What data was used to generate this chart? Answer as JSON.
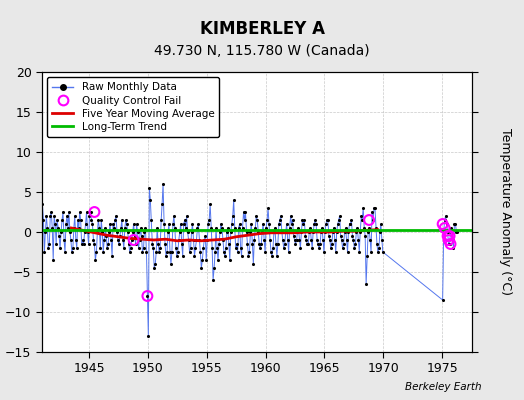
{
  "title": "KIMBERLEY A",
  "subtitle": "49.730 N, 115.780 W (Canada)",
  "ylabel": "Temperature Anomaly (°C)",
  "watermark": "Berkeley Earth",
  "bg_color": "#e8e8e8",
  "plot_bg_color": "#ffffff",
  "ylim": [
    -15,
    20
  ],
  "yticks": [
    -15,
    -10,
    -5,
    0,
    5,
    10,
    15,
    20
  ],
  "xticks": [
    1945,
    1950,
    1955,
    1960,
    1965,
    1970,
    1975
  ],
  "xlim": [
    1941.0,
    1977.5
  ],
  "raw_years": [
    1941.04,
    1941.13,
    1941.21,
    1941.29,
    1941.38,
    1941.46,
    1941.54,
    1941.63,
    1941.71,
    1941.79,
    1941.88,
    1941.96,
    1942.04,
    1942.13,
    1942.21,
    1942.29,
    1942.38,
    1942.46,
    1942.54,
    1942.63,
    1942.71,
    1942.79,
    1942.88,
    1942.96,
    1943.04,
    1943.13,
    1943.21,
    1943.29,
    1943.38,
    1943.46,
    1943.54,
    1943.63,
    1943.71,
    1943.79,
    1943.88,
    1943.96,
    1944.04,
    1944.13,
    1944.21,
    1944.29,
    1944.38,
    1944.46,
    1944.54,
    1944.63,
    1944.71,
    1944.79,
    1944.88,
    1944.96,
    1945.04,
    1945.13,
    1945.21,
    1945.29,
    1945.38,
    1945.46,
    1945.54,
    1945.63,
    1945.71,
    1945.79,
    1945.88,
    1945.96,
    1946.04,
    1946.13,
    1946.21,
    1946.29,
    1946.38,
    1946.46,
    1946.54,
    1946.63,
    1946.71,
    1946.79,
    1946.88,
    1946.96,
    1947.04,
    1947.13,
    1947.21,
    1947.29,
    1947.38,
    1947.46,
    1947.54,
    1947.63,
    1947.71,
    1947.79,
    1947.88,
    1947.96,
    1948.04,
    1948.13,
    1948.21,
    1948.29,
    1948.38,
    1948.46,
    1948.54,
    1948.63,
    1948.71,
    1948.79,
    1948.88,
    1948.96,
    1949.04,
    1949.13,
    1949.21,
    1949.29,
    1949.38,
    1949.46,
    1949.54,
    1949.63,
    1949.71,
    1949.79,
    1949.88,
    1949.96,
    1950.04,
    1950.13,
    1950.21,
    1950.29,
    1950.38,
    1950.46,
    1950.54,
    1950.63,
    1950.71,
    1950.79,
    1950.88,
    1950.96,
    1951.04,
    1951.13,
    1951.21,
    1951.29,
    1951.38,
    1951.46,
    1951.54,
    1951.63,
    1951.71,
    1951.79,
    1951.88,
    1951.96,
    1952.04,
    1952.13,
    1952.21,
    1952.29,
    1952.38,
    1952.46,
    1952.54,
    1952.63,
    1952.71,
    1952.79,
    1952.88,
    1952.96,
    1953.04,
    1953.13,
    1953.21,
    1953.29,
    1953.38,
    1953.46,
    1953.54,
    1953.63,
    1953.71,
    1953.79,
    1953.88,
    1953.96,
    1954.04,
    1954.13,
    1954.21,
    1954.29,
    1954.38,
    1954.46,
    1954.54,
    1954.63,
    1954.71,
    1954.79,
    1954.88,
    1954.96,
    1955.04,
    1955.13,
    1955.21,
    1955.29,
    1955.38,
    1955.46,
    1955.54,
    1955.63,
    1955.71,
    1955.79,
    1955.88,
    1955.96,
    1956.04,
    1956.13,
    1956.21,
    1956.29,
    1956.38,
    1956.46,
    1956.54,
    1956.63,
    1956.71,
    1956.79,
    1956.88,
    1956.96,
    1957.04,
    1957.13,
    1957.21,
    1957.29,
    1957.38,
    1957.46,
    1957.54,
    1957.63,
    1957.71,
    1957.79,
    1957.88,
    1957.96,
    1958.04,
    1958.13,
    1958.21,
    1958.29,
    1958.38,
    1958.46,
    1958.54,
    1958.63,
    1958.71,
    1958.79,
    1958.88,
    1958.96,
    1959.04,
    1959.13,
    1959.21,
    1959.29,
    1959.38,
    1959.46,
    1959.54,
    1959.63,
    1959.71,
    1959.79,
    1959.88,
    1959.96,
    1960.04,
    1960.13,
    1960.21,
    1960.29,
    1960.38,
    1960.46,
    1960.54,
    1960.63,
    1960.71,
    1960.79,
    1960.88,
    1960.96,
    1961.04,
    1961.13,
    1961.21,
    1961.29,
    1961.38,
    1961.46,
    1961.54,
    1961.63,
    1961.71,
    1961.79,
    1961.88,
    1961.96,
    1962.04,
    1962.13,
    1962.21,
    1962.29,
    1962.38,
    1962.46,
    1962.54,
    1962.63,
    1962.71,
    1962.79,
    1962.88,
    1962.96,
    1963.04,
    1963.13,
    1963.21,
    1963.29,
    1963.38,
    1963.46,
    1963.54,
    1963.63,
    1963.71,
    1963.79,
    1963.88,
    1963.96,
    1964.04,
    1964.13,
    1964.21,
    1964.29,
    1964.38,
    1964.46,
    1964.54,
    1964.63,
    1964.71,
    1964.79,
    1964.88,
    1964.96,
    1965.04,
    1965.13,
    1965.21,
    1965.29,
    1965.38,
    1965.46,
    1965.54,
    1965.63,
    1965.71,
    1965.79,
    1965.88,
    1965.96,
    1966.04,
    1966.13,
    1966.21,
    1966.29,
    1966.38,
    1966.46,
    1966.54,
    1966.63,
    1966.71,
    1966.79,
    1966.88,
    1966.96,
    1967.04,
    1967.13,
    1967.21,
    1967.29,
    1967.38,
    1967.46,
    1967.54,
    1967.63,
    1967.71,
    1967.79,
    1967.88,
    1967.96,
    1968.04,
    1968.13,
    1968.21,
    1968.29,
    1968.38,
    1968.46,
    1968.54,
    1968.63,
    1968.71,
    1968.79,
    1968.88,
    1968.96,
    1969.04,
    1969.13,
    1969.21,
    1969.29,
    1969.38,
    1969.46,
    1969.54,
    1969.63,
    1969.71,
    1969.79,
    1969.88,
    1969.96,
    1975.04,
    1975.13,
    1975.21,
    1975.29,
    1975.38,
    1975.46,
    1975.54,
    1975.63,
    1975.71,
    1975.79,
    1975.88,
    1975.96,
    1976.04,
    1976.13,
    1976.21,
    1976.29
  ],
  "raw_values": [
    3.5,
    1.5,
    -2.5,
    0.0,
    2.0,
    0.5,
    -2.0,
    -1.5,
    2.0,
    2.5,
    0.5,
    -3.5,
    2.0,
    1.0,
    -1.5,
    1.5,
    0.5,
    -0.5,
    -2.0,
    0.0,
    1.5,
    2.5,
    -1.0,
    -2.5,
    1.0,
    2.0,
    0.5,
    2.5,
    0.0,
    -1.0,
    -2.5,
    -2.0,
    0.5,
    2.0,
    -1.0,
    -2.0,
    1.5,
    0.5,
    2.5,
    1.5,
    -1.5,
    -1.0,
    -1.5,
    0.0,
    1.0,
    2.5,
    0.0,
    -1.5,
    2.0,
    2.5,
    1.5,
    1.0,
    -1.0,
    -1.5,
    -3.5,
    -2.5,
    0.0,
    1.5,
    0.5,
    -2.0,
    1.5,
    0.0,
    -2.5,
    -1.0,
    0.5,
    -0.5,
    -2.0,
    -1.5,
    0.0,
    1.0,
    -1.0,
    -3.0,
    1.0,
    0.5,
    1.5,
    2.0,
    0.0,
    -1.0,
    -1.5,
    -0.5,
    0.5,
    1.5,
    -1.0,
    -2.0,
    0.5,
    1.5,
    1.0,
    0.0,
    -1.5,
    -2.5,
    -2.0,
    -1.0,
    0.0,
    1.0,
    -0.5,
    -1.5,
    1.0,
    0.0,
    -2.0,
    -1.0,
    0.5,
    -0.5,
    -2.5,
    -2.0,
    0.0,
    0.5,
    -2.5,
    -8.0,
    -13.0,
    5.5,
    4.0,
    1.5,
    -1.5,
    -2.0,
    -4.5,
    -4.0,
    -2.5,
    0.5,
    -1.5,
    -2.5,
    -2.0,
    1.5,
    3.5,
    6.0,
    1.0,
    -1.5,
    -3.0,
    -2.5,
    0.0,
    1.0,
    -2.5,
    -4.0,
    -2.5,
    1.0,
    2.0,
    0.5,
    -2.0,
    -3.0,
    -2.5,
    -1.0,
    0.0,
    1.0,
    -1.5,
    -3.0,
    1.0,
    1.5,
    0.5,
    2.0,
    0.0,
    -1.0,
    -2.5,
    -2.0,
    0.0,
    1.0,
    -1.0,
    -3.0,
    -2.0,
    -1.0,
    0.5,
    1.0,
    -1.0,
    -2.5,
    -4.5,
    -3.5,
    -2.0,
    -1.0,
    -0.5,
    -3.5,
    -1.0,
    1.0,
    1.5,
    3.5,
    0.5,
    -2.0,
    -6.0,
    -4.5,
    -2.5,
    0.5,
    -2.0,
    -3.5,
    -1.5,
    0.0,
    1.0,
    0.5,
    -1.0,
    -2.5,
    -3.0,
    -2.0,
    0.0,
    0.5,
    -1.5,
    -3.5,
    0.0,
    1.0,
    2.0,
    4.0,
    0.5,
    -2.0,
    -1.5,
    -2.5,
    0.5,
    1.0,
    -2.0,
    -3.0,
    0.5,
    2.5,
    1.5,
    2.5,
    0.0,
    -1.5,
    -3.0,
    -2.5,
    0.0,
    1.0,
    -1.5,
    -4.0,
    -1.0,
    0.5,
    2.0,
    1.5,
    0.0,
    -1.5,
    -2.0,
    -1.5,
    0.0,
    1.0,
    -1.0,
    -2.5,
    0.5,
    1.5,
    3.0,
    1.0,
    -1.0,
    -2.5,
    -3.0,
    -2.0,
    0.0,
    0.5,
    -1.5,
    -3.0,
    -1.5,
    1.0,
    1.5,
    2.0,
    0.0,
    -1.0,
    -2.0,
    -1.5,
    0.0,
    1.0,
    -1.0,
    -2.5,
    0.5,
    2.0,
    1.0,
    1.5,
    -0.5,
    -1.0,
    -1.5,
    -1.0,
    0.0,
    0.5,
    -1.0,
    -2.0,
    0.0,
    1.5,
    1.0,
    1.5,
    -0.5,
    -1.0,
    -1.5,
    -1.5,
    0.0,
    0.5,
    -1.0,
    -2.0,
    0.0,
    1.0,
    1.5,
    1.0,
    -1.0,
    -1.5,
    -2.0,
    -1.5,
    0.0,
    0.5,
    -1.0,
    -2.5,
    0.0,
    1.0,
    1.5,
    1.5,
    -0.5,
    -1.0,
    -2.0,
    -1.5,
    0.0,
    0.5,
    -1.0,
    -2.5,
    0.0,
    1.0,
    1.5,
    2.0,
    -0.5,
    -1.0,
    -2.0,
    -1.5,
    0.0,
    0.5,
    -1.0,
    -2.5,
    0.0,
    1.0,
    1.0,
    1.5,
    -0.5,
    -1.0,
    -2.0,
    -1.5,
    0.0,
    0.5,
    -1.0,
    -2.5,
    0.0,
    2.0,
    1.5,
    3.0,
    0.5,
    -0.5,
    -6.5,
    -3.0,
    0.0,
    0.5,
    -1.0,
    -2.5,
    2.5,
    1.5,
    3.0,
    3.0,
    0.5,
    -1.5,
    -2.5,
    -2.0,
    0.0,
    1.0,
    -1.0,
    -2.5,
    -8.5,
    0.0,
    1.5,
    2.0,
    1.0,
    0.0,
    -1.5,
    -1.5,
    0.0,
    0.5,
    -1.0,
    -2.0,
    1.0,
    1.0,
    0.0,
    0.0,
    -0.5,
    -1.0,
    -1.0,
    0.0,
    0.0,
    -1.0,
    -1.5,
    -1.0,
    -1.0,
    0.0,
    0.5,
    0.5,
    0.0,
    0.0,
    -1.0,
    -1.0,
    0.0,
    0.5,
    -1.0,
    -1.5,
    0.0,
    0.0
  ],
  "qc_years": [
    1945.46,
    1948.79,
    1949.96,
    1968.79,
    1975.04,
    1975.21,
    1975.46,
    1975.54,
    1975.63,
    1975.71
  ],
  "qc_values": [
    2.5,
    -1.0,
    -8.0,
    1.5,
    1.0,
    0.5,
    -0.5,
    -1.0,
    -0.5,
    -1.5
  ],
  "ma_years": [
    1943.5,
    1944.5,
    1945.5,
    1946.5,
    1947.5,
    1948.5,
    1949.5,
    1950.5,
    1951.5,
    1952.5,
    1953.5,
    1954.5,
    1955.5,
    1956.5,
    1957.5,
    1958.5,
    1959.5,
    1960.5,
    1961.5,
    1962.5,
    1963.5,
    1964.5,
    1965.5,
    1966.5,
    1967.5,
    1968.5,
    1969.5
  ],
  "ma_values": [
    0.5,
    0.2,
    -0.1,
    -0.4,
    -0.6,
    -0.8,
    -0.9,
    -1.0,
    -0.9,
    -1.1,
    -1.0,
    -1.1,
    -1.0,
    -0.9,
    -0.6,
    -0.4,
    -0.2,
    -0.1,
    -0.1,
    -0.1,
    0.0,
    0.0,
    0.0,
    0.1,
    0.1,
    0.2,
    0.3
  ],
  "trend_x": [
    1941.0,
    1977.5
  ],
  "trend_y": [
    0.2,
    0.2
  ],
  "raw_line_color": "#5577ee",
  "raw_dot_color": "#000000",
  "ma_color": "#dd0000",
  "trend_color": "#00bb00",
  "qc_color": "#ff00ff",
  "title_fontsize": 12,
  "subtitle_fontsize": 10,
  "tick_fontsize": 9,
  "ylabel_fontsize": 9
}
